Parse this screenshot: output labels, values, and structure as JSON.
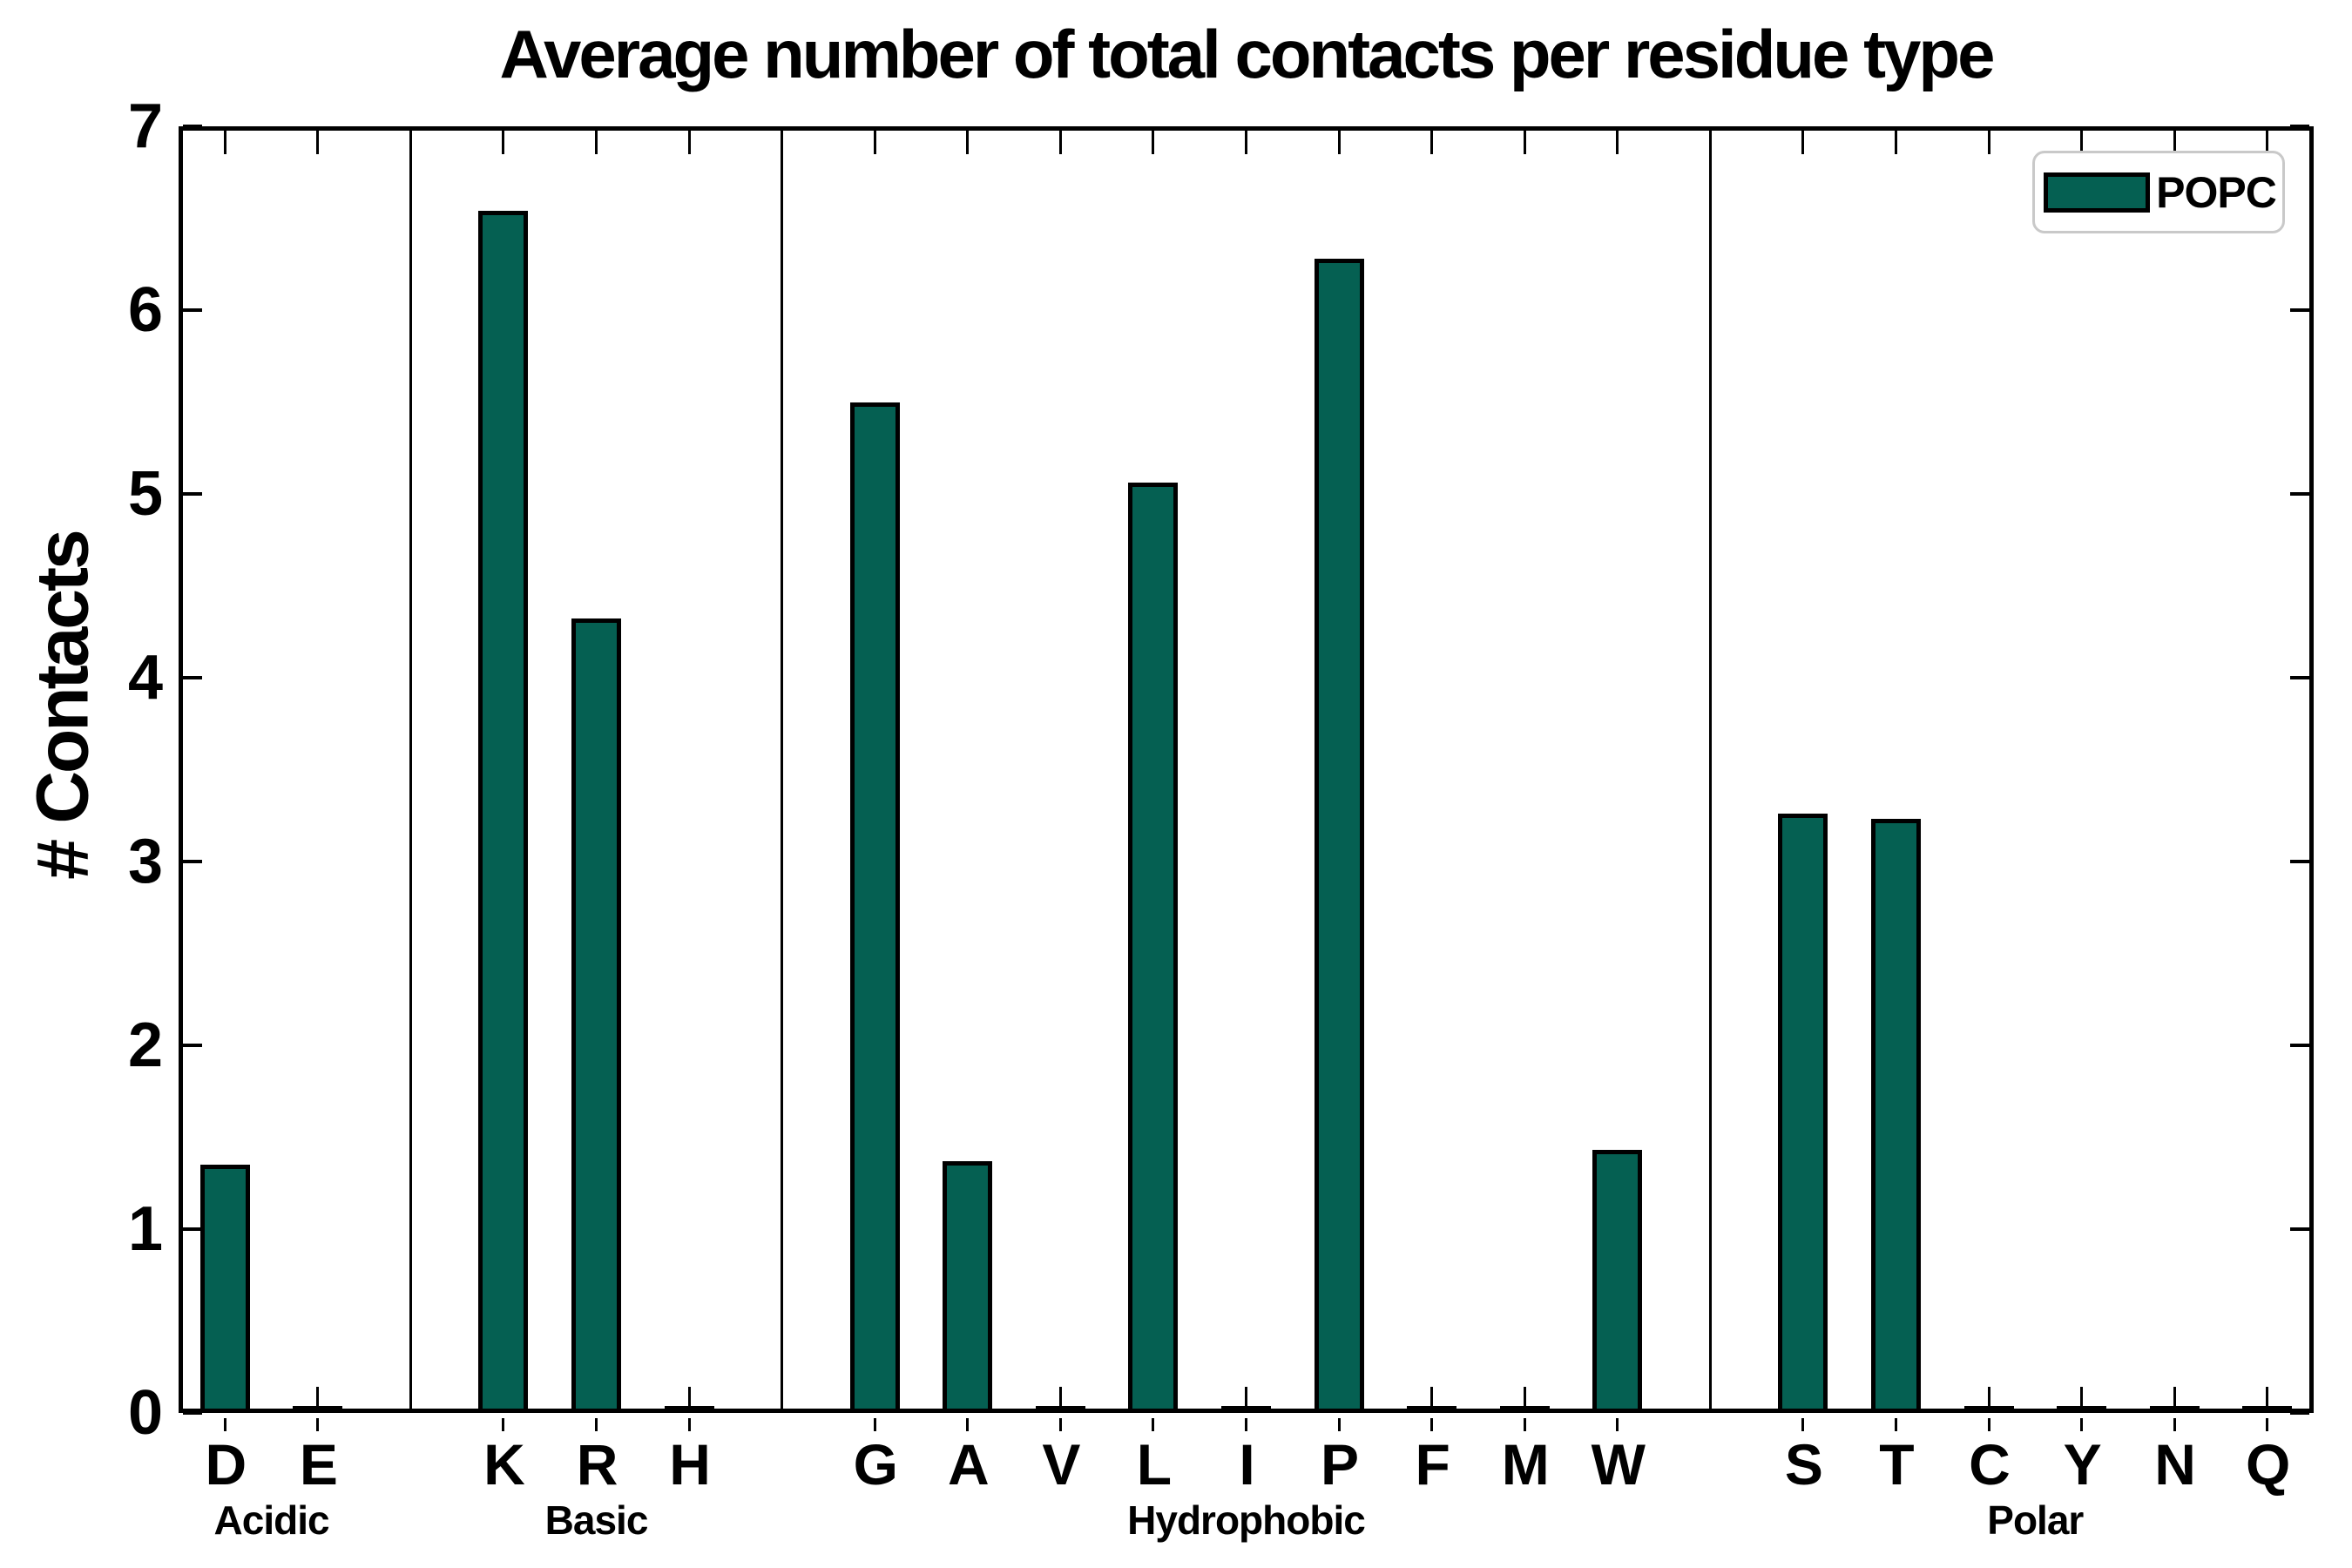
{
  "title": "Average number of total contacts per residue type",
  "y_axis_label": "# Contacts",
  "legend": {
    "label": "POPC"
  },
  "colors": {
    "bar_fill": "#056052",
    "bar_border": "#000000",
    "axis": "#000000",
    "legend_border": "#c9c9c9",
    "background": "#ffffff"
  },
  "chart_data": {
    "type": "bar",
    "title": "Average number of total contacts per residue type",
    "xlabel": "",
    "ylabel": "# Contacts",
    "ylim": [
      0,
      7
    ],
    "yticks": [
      0,
      1,
      2,
      3,
      4,
      5,
      6,
      7
    ],
    "grid": false,
    "legend_position": "upper right",
    "legend_entries": [
      "POPC"
    ],
    "categories": [
      "D",
      "E",
      "K",
      "R",
      "H",
      "G",
      "A",
      "V",
      "L",
      "I",
      "P",
      "F",
      "M",
      "W",
      "S",
      "T",
      "C",
      "Y",
      "N",
      "Q"
    ],
    "values": [
      1.35,
      0,
      6.54,
      4.32,
      0,
      5.5,
      1.37,
      0,
      5.06,
      0,
      6.28,
      0,
      0,
      1.43,
      3.26,
      3.23,
      0,
      0,
      0,
      0
    ],
    "series": [
      {
        "name": "POPC",
        "values": [
          1.35,
          0,
          6.54,
          4.32,
          0,
          5.5,
          1.37,
          0,
          5.06,
          0,
          6.28,
          0,
          0,
          1.43,
          3.26,
          3.23,
          0,
          0,
          0,
          0
        ]
      }
    ],
    "groups": [
      {
        "label": "Acidic",
        "residues": [
          "D",
          "E"
        ]
      },
      {
        "label": "Basic",
        "residues": [
          "K",
          "R",
          "H"
        ]
      },
      {
        "label": "Hydrophobic",
        "residues": [
          "G",
          "A",
          "V",
          "L",
          "I",
          "P",
          "F",
          "M",
          "W"
        ]
      },
      {
        "label": "Polar",
        "residues": [
          "S",
          "T",
          "C",
          "Y",
          "N",
          "Q"
        ]
      }
    ]
  }
}
